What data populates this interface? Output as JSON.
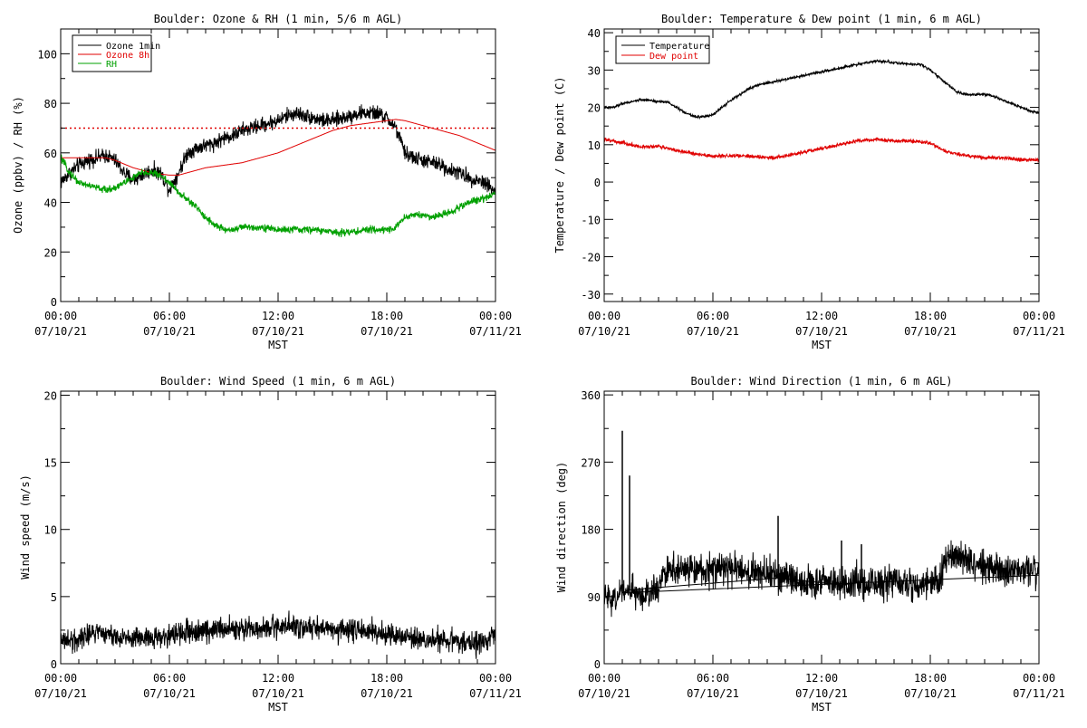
{
  "chart_data": [
    {
      "type": "line",
      "title": "Boulder: Ozone & RH (1 min, 5/6 m AGL)",
      "xlabel": "MST",
      "ylabel": "Ozone (ppbv) / RH (%)",
      "xlim": [
        0,
        24
      ],
      "ylim": [
        0,
        110
      ],
      "x_ticks": [
        {
          "x": 0,
          "time": "00:00",
          "date": "07/10/21"
        },
        {
          "x": 6,
          "time": "06:00",
          "date": "07/10/21"
        },
        {
          "x": 12,
          "time": "12:00",
          "date": "07/10/21"
        },
        {
          "x": 18,
          "time": "18:00",
          "date": "07/10/21"
        },
        {
          "x": 24,
          "time": "00:00",
          "date": "07/11/21"
        }
      ],
      "y_ticks": [
        0,
        20,
        40,
        60,
        80,
        100
      ],
      "reference_line": {
        "y": 70,
        "color": "#e00000",
        "style": "dotted"
      },
      "legend": {
        "placement": "top-left",
        "entries": [
          {
            "label": "Ozone 1min",
            "color": "#000000"
          },
          {
            "label": "Ozone 8h",
            "color": "#e00000"
          },
          {
            "label": "RH",
            "color": "#00a000"
          }
        ]
      },
      "series": [
        {
          "name": "Ozone 1min",
          "color": "#000000",
          "noise": 2.5,
          "x": [
            0,
            0.5,
            1,
            1.5,
            2,
            2.5,
            3,
            3.5,
            4,
            4.5,
            5,
            5.5,
            6,
            6.5,
            7,
            7.5,
            8,
            8.5,
            9,
            9.5,
            10,
            10.5,
            11,
            11.5,
            12,
            12.5,
            13,
            13.5,
            14,
            14.5,
            15,
            15.5,
            16,
            16.5,
            17,
            17.5,
            18,
            18.5,
            19,
            19.5,
            20,
            20.5,
            21,
            21.5,
            22,
            22.5,
            23,
            23.5,
            24
          ],
          "y": [
            48,
            52,
            55,
            57,
            58,
            59,
            57,
            52,
            49,
            51,
            53,
            52,
            45,
            52,
            60,
            62,
            63,
            64,
            66,
            67,
            69,
            70,
            71,
            72,
            73,
            75,
            76,
            75,
            74,
            73,
            73,
            74,
            75,
            76,
            76,
            76,
            74,
            70,
            60,
            58,
            57,
            56,
            55,
            53,
            52,
            50,
            49,
            48,
            44
          ]
        },
        {
          "name": "Ozone 8h",
          "color": "#e00000",
          "noise": 0,
          "x": [
            0,
            1,
            2,
            2.5,
            3,
            4,
            5,
            6,
            6.5,
            7,
            8,
            9,
            10,
            11,
            12,
            13,
            14,
            15,
            16,
            17,
            18,
            18.5,
            19,
            20,
            21,
            22,
            23,
            24
          ],
          "y": [
            58,
            58,
            58,
            58,
            57,
            54,
            52,
            51,
            51,
            52,
            54,
            55,
            56,
            58,
            60,
            63,
            66,
            69,
            71,
            72,
            73,
            73.5,
            73,
            71,
            69,
            67,
            64,
            61
          ]
        },
        {
          "name": "RH",
          "color": "#00a000",
          "noise": 1.2,
          "x": [
            0,
            0.5,
            1,
            1.5,
            2,
            2.5,
            3,
            3.5,
            4,
            4.5,
            5,
            5.5,
            6,
            6.5,
            7,
            7.5,
            8,
            8.5,
            9,
            9.5,
            10,
            11,
            12,
            13,
            14,
            15,
            16,
            17,
            18,
            18.5,
            19,
            19.5,
            20,
            20.5,
            21,
            21.5,
            22,
            22.5,
            23,
            23.5,
            24
          ],
          "y": [
            58,
            52,
            48,
            47,
            46,
            45,
            46,
            48,
            50,
            52,
            52,
            51,
            48,
            44,
            41,
            38,
            34,
            31,
            29,
            29,
            30,
            30,
            29,
            29,
            29,
            28,
            28,
            29,
            29,
            30,
            34,
            35,
            35,
            34,
            35,
            36,
            38,
            40,
            41,
            42,
            44
          ]
        }
      ]
    },
    {
      "type": "line",
      "title": "Boulder: Temperature & Dew point (1 min, 6 m AGL)",
      "xlabel": "MST",
      "ylabel": "Temperature / Dew point (C)",
      "xlim": [
        0,
        24
      ],
      "ylim": [
        -32,
        41
      ],
      "x_ticks": [
        {
          "x": 0,
          "time": "00:00",
          "date": "07/10/21"
        },
        {
          "x": 6,
          "time": "06:00",
          "date": "07/10/21"
        },
        {
          "x": 12,
          "time": "12:00",
          "date": "07/10/21"
        },
        {
          "x": 18,
          "time": "18:00",
          "date": "07/10/21"
        },
        {
          "x": 24,
          "time": "00:00",
          "date": "07/11/21"
        }
      ],
      "y_ticks": [
        -30,
        -20,
        -10,
        0,
        10,
        20,
        30,
        40
      ],
      "legend": {
        "placement": "top-left",
        "entries": [
          {
            "label": "Temperature",
            "color": "#000000"
          },
          {
            "label": "Dew point",
            "color": "#e00000"
          }
        ]
      },
      "series": [
        {
          "name": "Temperature",
          "color": "#000000",
          "noise": 0.3,
          "x": [
            0,
            0.5,
            1,
            1.5,
            2,
            2.5,
            3,
            3.5,
            4,
            4.5,
            5,
            5.5,
            6,
            6.5,
            7,
            7.5,
            8,
            8.5,
            9,
            9.5,
            10,
            11,
            12,
            13,
            14,
            15,
            16,
            17,
            17.5,
            18,
            18.5,
            19,
            19.5,
            20,
            20.5,
            21,
            21.5,
            22,
            22.5,
            23,
            23.5,
            24
          ],
          "y": [
            20,
            20,
            21,
            21.5,
            22,
            22,
            21.5,
            21.5,
            20,
            18.5,
            17.5,
            17.5,
            18,
            20,
            22,
            23.5,
            25,
            26,
            26.5,
            27,
            27.5,
            28.5,
            29.5,
            30.5,
            31.5,
            32.5,
            32,
            31.5,
            31.5,
            30,
            28,
            26,
            24,
            23.5,
            23.5,
            23.5,
            23,
            22,
            21,
            20,
            19,
            18.5
          ]
        },
        {
          "name": "Dew point",
          "color": "#e00000",
          "noise": 0.4,
          "x": [
            0,
            0.5,
            1,
            1.5,
            2,
            2.5,
            3,
            3.5,
            4,
            4.5,
            5,
            6,
            7,
            8,
            9,
            9.5,
            10,
            11,
            12,
            13,
            14,
            15,
            16,
            17,
            18,
            18.5,
            19,
            19.5,
            20,
            21,
            22,
            23,
            24
          ],
          "y": [
            11.5,
            11,
            10.5,
            10,
            9.5,
            9.5,
            9.5,
            9,
            8.5,
            8,
            7.5,
            7,
            7,
            7,
            6.5,
            6.5,
            7,
            8,
            9,
            10,
            11,
            11.5,
            11,
            11,
            10.5,
            9,
            8,
            7.5,
            7,
            6.5,
            6.5,
            6,
            6
          ]
        }
      ]
    },
    {
      "type": "line",
      "title": "Boulder: Wind Speed (1 min, 6 m AGL)",
      "xlabel": "MST",
      "ylabel": "Wind speed (m/s)",
      "xlim": [
        0,
        24
      ],
      "ylim": [
        0,
        20.3
      ],
      "x_ticks": [
        {
          "x": 0,
          "time": "00:00",
          "date": "07/10/21"
        },
        {
          "x": 6,
          "time": "06:00",
          "date": "07/10/21"
        },
        {
          "x": 12,
          "time": "12:00",
          "date": "07/10/21"
        },
        {
          "x": 18,
          "time": "18:00",
          "date": "07/10/21"
        },
        {
          "x": 24,
          "time": "00:00",
          "date": "07/11/21"
        }
      ],
      "y_ticks": [
        0,
        5,
        10,
        15,
        20
      ],
      "series": [
        {
          "name": "",
          "color": "#000000",
          "noise": 0.7,
          "x": [
            0,
            0.5,
            1,
            1.5,
            2,
            2.5,
            3,
            4,
            5,
            6,
            7,
            8,
            9,
            10,
            11,
            12,
            13,
            14,
            15,
            16,
            17,
            18,
            18.5,
            19,
            20,
            21,
            22,
            23,
            23.5,
            24
          ],
          "y": [
            2,
            1.5,
            1.8,
            2.2,
            2.5,
            2.2,
            2,
            2,
            1.9,
            2.1,
            2.3,
            2.5,
            2.6,
            2.6,
            2.7,
            2.8,
            2.8,
            2.7,
            2.6,
            2.5,
            2.4,
            2.2,
            2,
            1.8,
            1.8,
            1.7,
            1.6,
            1.5,
            1.8,
            2.3
          ]
        }
      ]
    },
    {
      "type": "line",
      "title": "Boulder: Wind Direction (1 min, 6 m AGL)",
      "xlabel": "MST",
      "ylabel": "Wind direction (deg)",
      "xlim": [
        0,
        24
      ],
      "ylim": [
        0,
        365
      ],
      "x_ticks": [
        {
          "x": 0,
          "time": "00:00",
          "date": "07/10/21"
        },
        {
          "x": 6,
          "time": "06:00",
          "date": "07/10/21"
        },
        {
          "x": 12,
          "time": "12:00",
          "date": "07/10/21"
        },
        {
          "x": 18,
          "time": "18:00",
          "date": "07/10/21"
        },
        {
          "x": 24,
          "time": "00:00",
          "date": "07/11/21"
        }
      ],
      "y_ticks": [
        0,
        90,
        180,
        270,
        360
      ],
      "series": [
        {
          "name": "",
          "color": "#000000",
          "noise": 18,
          "x": [
            0,
            0.5,
            1,
            1.5,
            2,
            2.5,
            3,
            3.3,
            3.5,
            4,
            5,
            6,
            7,
            8,
            9,
            9.5,
            10,
            11,
            12,
            13,
            14,
            15,
            16,
            17,
            18,
            18.5,
            19,
            19.5,
            20,
            21,
            22,
            23,
            23.5,
            24
          ],
          "y": [
            90,
            85,
            95,
            100,
            95,
            95,
            100,
            120,
            128,
            128,
            125,
            125,
            128,
            122,
            120,
            115,
            115,
            110,
            108,
            105,
            110,
            105,
            110,
            108,
            105,
            112,
            150,
            145,
            140,
            128,
            125,
            128,
            125,
            120
          ],
          "spikes": [
            [
              1,
              312
            ],
            [
              1.4,
              252
            ],
            [
              9.6,
              198
            ],
            [
              13.1,
              165
            ],
            [
              14.2,
              160
            ]
          ]
        }
      ]
    }
  ]
}
